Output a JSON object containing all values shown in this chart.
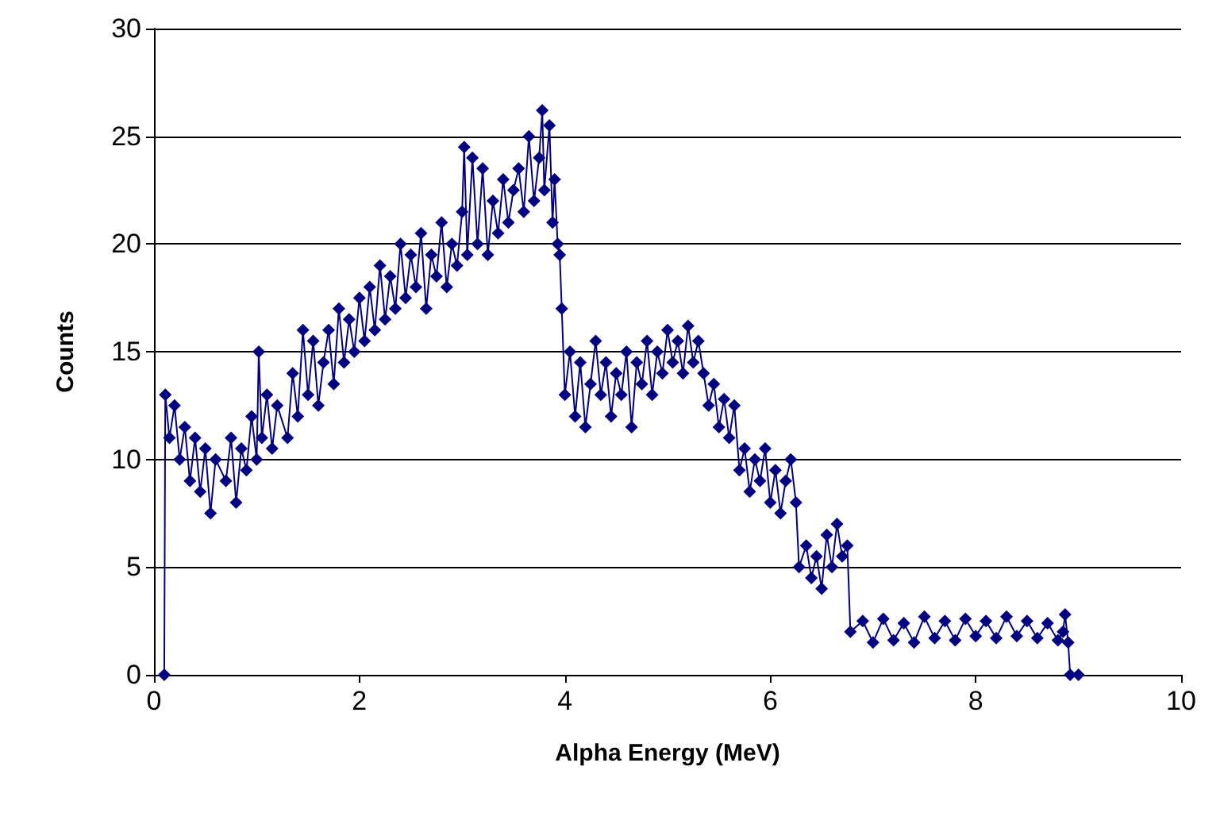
{
  "chart_data": {
    "type": "line",
    "xlabel": "Alpha Energy (MeV)",
    "ylabel": "Counts",
    "xlim": [
      0,
      10
    ],
    "xticks": [
      0,
      2,
      4,
      6,
      8,
      10
    ],
    "ylim": [
      0,
      30
    ],
    "yticks": [
      0,
      5,
      10,
      15,
      20,
      25,
      30
    ],
    "grid": "y",
    "marker": "diamond",
    "line_style": "solid",
    "series": [
      {
        "color": "#000080",
        "x": [
          0.1,
          0.11,
          0.15,
          0.2,
          0.25,
          0.3,
          0.35,
          0.4,
          0.45,
          0.5,
          0.55,
          0.6,
          0.7,
          0.75,
          0.8,
          0.85,
          0.9,
          0.95,
          1.0,
          1.02,
          1.05,
          1.1,
          1.15,
          1.2,
          1.3,
          1.35,
          1.4,
          1.45,
          1.5,
          1.55,
          1.6,
          1.65,
          1.7,
          1.75,
          1.8,
          1.85,
          1.9,
          1.95,
          2.0,
          2.05,
          2.1,
          2.15,
          2.2,
          2.25,
          2.3,
          2.35,
          2.4,
          2.45,
          2.5,
          2.55,
          2.6,
          2.65,
          2.7,
          2.75,
          2.8,
          2.85,
          2.9,
          2.95,
          3.0,
          3.02,
          3.05,
          3.1,
          3.15,
          3.2,
          3.25,
          3.3,
          3.35,
          3.4,
          3.45,
          3.5,
          3.55,
          3.6,
          3.65,
          3.7,
          3.75,
          3.78,
          3.8,
          3.85,
          3.88,
          3.9,
          3.93,
          3.95,
          3.97,
          4.0,
          4.05,
          4.1,
          4.15,
          4.2,
          4.25,
          4.3,
          4.35,
          4.4,
          4.45,
          4.5,
          4.55,
          4.6,
          4.65,
          4.7,
          4.75,
          4.8,
          4.85,
          4.9,
          4.95,
          5.0,
          5.05,
          5.1,
          5.15,
          5.2,
          5.25,
          5.3,
          5.35,
          5.4,
          5.45,
          5.5,
          5.55,
          5.6,
          5.65,
          5.7,
          5.75,
          5.8,
          5.85,
          5.9,
          5.95,
          6.0,
          6.05,
          6.1,
          6.15,
          6.2,
          6.25,
          6.28,
          6.35,
          6.4,
          6.45,
          6.5,
          6.55,
          6.6,
          6.65,
          6.7,
          6.75,
          6.78,
          6.9,
          7.0,
          7.1,
          7.2,
          7.3,
          7.4,
          7.5,
          7.6,
          7.7,
          7.8,
          7.9,
          8.0,
          8.1,
          8.2,
          8.3,
          8.4,
          8.5,
          8.6,
          8.7,
          8.8,
          8.85,
          8.87,
          8.9,
          8.92,
          9.0
        ],
        "values": [
          0,
          13,
          11,
          12.5,
          10,
          11.5,
          9,
          11,
          8.5,
          10.5,
          7.5,
          10,
          9,
          11,
          8,
          10.5,
          9.5,
          12,
          10,
          15,
          11,
          13,
          10.5,
          12.5,
          11,
          14,
          12,
          16,
          13,
          15.5,
          12.5,
          14.5,
          16,
          13.5,
          17,
          14.5,
          16.5,
          15,
          17.5,
          15.5,
          18,
          16,
          19,
          16.5,
          18.5,
          17,
          20,
          17.5,
          19.5,
          18,
          20.5,
          17,
          19.5,
          18.5,
          21,
          18,
          20,
          19,
          21.5,
          24.5,
          19.5,
          24,
          20,
          23.5,
          19.5,
          22,
          20.5,
          23,
          21,
          22.5,
          23.5,
          21.5,
          25,
          22,
          24,
          26.2,
          22.5,
          25.5,
          21,
          23,
          20,
          19.5,
          17,
          13,
          15,
          12,
          14.5,
          11.5,
          13.5,
          15.5,
          13,
          14.5,
          12,
          14,
          13,
          15,
          11.5,
          14.5,
          13.5,
          15.5,
          13,
          15,
          14,
          16,
          14.5,
          15.5,
          14,
          16.2,
          14.5,
          15.5,
          14,
          12.5,
          13.5,
          11.5,
          12.8,
          11,
          12.5,
          9.5,
          10.5,
          8.5,
          10,
          9,
          10.5,
          8,
          9.5,
          7.5,
          9,
          10,
          8,
          5,
          6,
          4.5,
          5.5,
          4,
          6.5,
          5,
          7,
          5.5,
          6,
          2,
          2.5,
          1.5,
          2.6,
          1.6,
          2.4,
          1.5,
          2.7,
          1.7,
          2.5,
          1.6,
          2.6,
          1.8,
          2.5,
          1.7,
          2.7,
          1.8,
          2.5,
          1.7,
          2.4,
          1.6,
          2.0,
          2.8,
          1.5,
          0,
          0
        ]
      }
    ]
  }
}
